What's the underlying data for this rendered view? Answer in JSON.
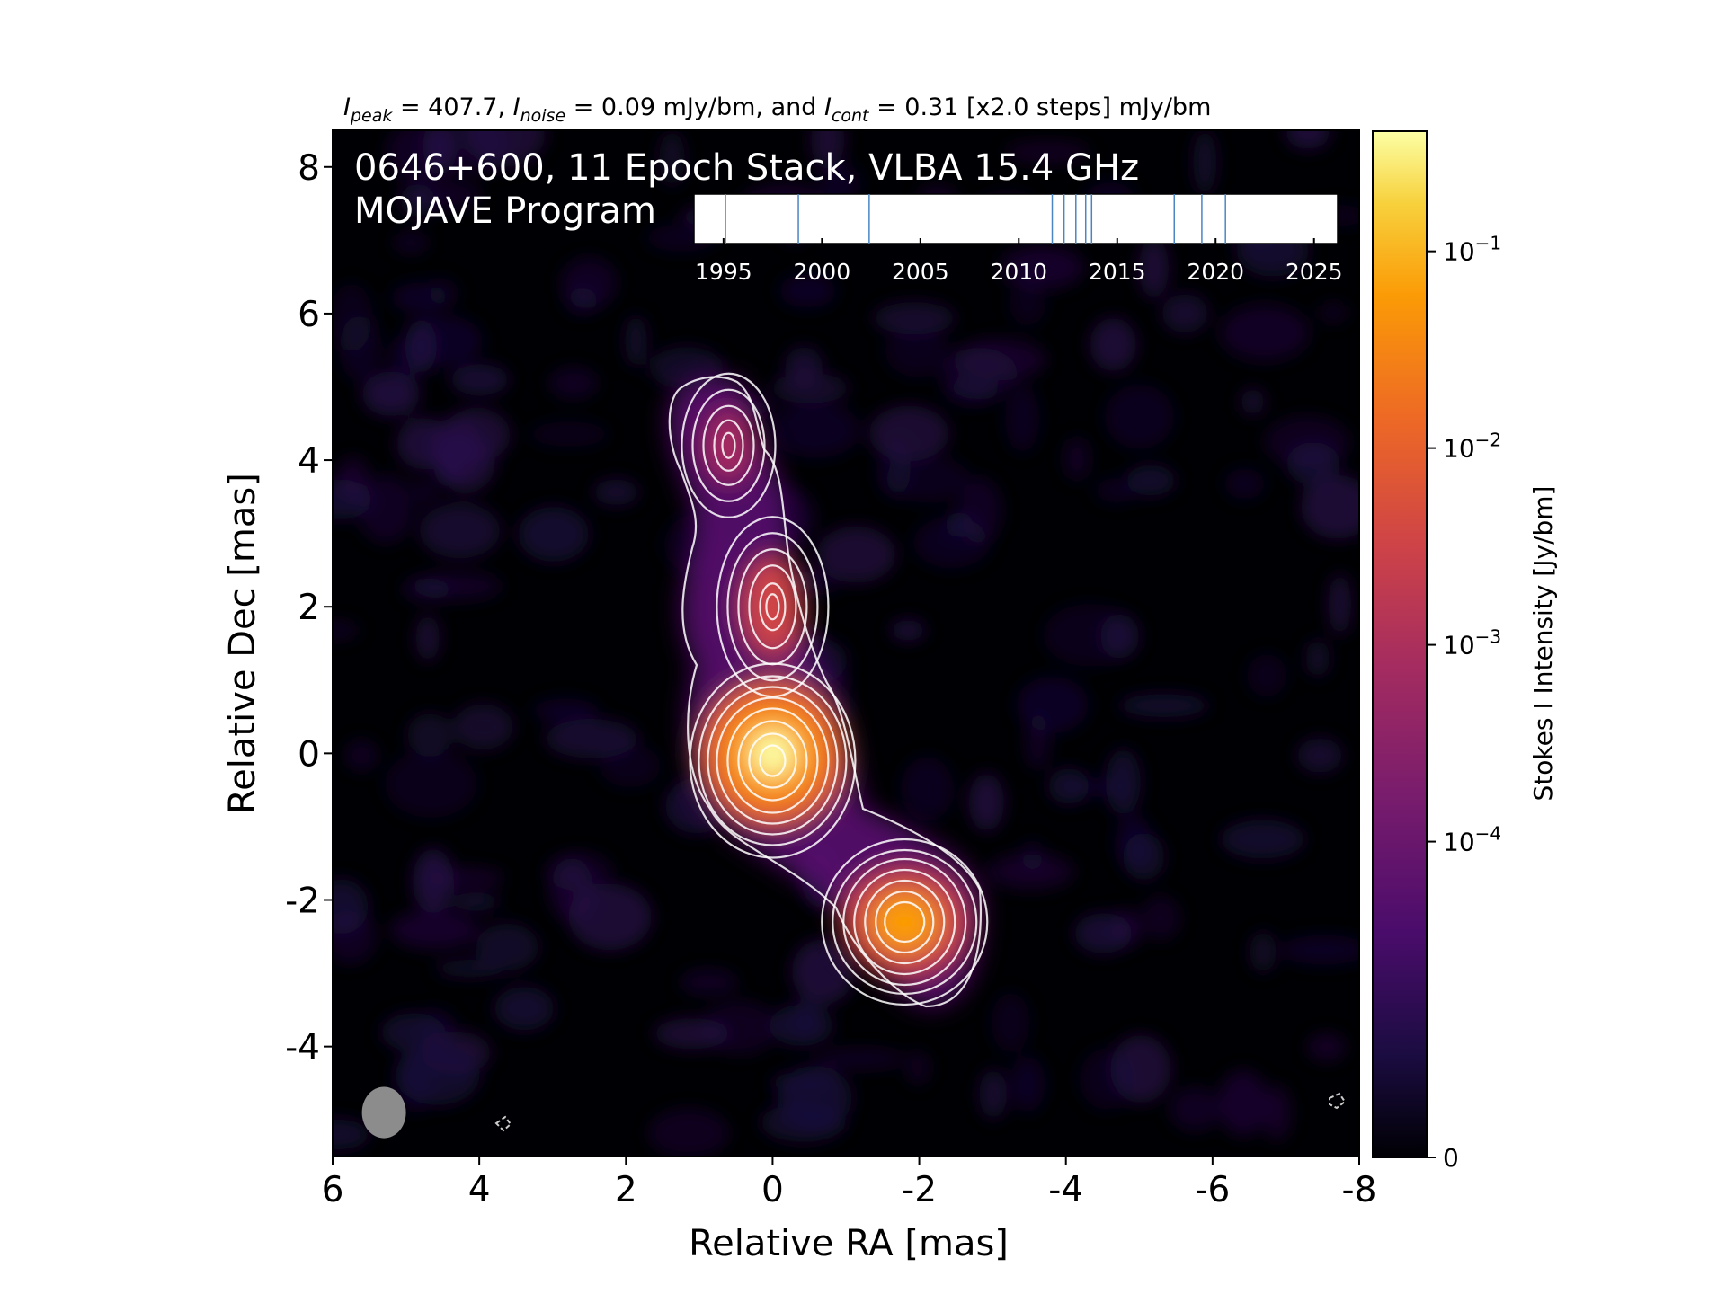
{
  "chart_data": {
    "type": "heatmap",
    "title_parts": {
      "peak_sym": "I",
      "peak_sub": "peak",
      "peak_val": " = 407.7, ",
      "noise_sym": "I",
      "noise_sub": "noise",
      "noise_val": " = 0.09 mJy/bm, and ",
      "cont_sym": "I",
      "cont_sub": "cont",
      "cont_val": " = 0.31 [x2.0 steps] mJy/bm"
    },
    "overlay_line1": "0646+600, 11 Epoch Stack, VLBA 15.4 GHz",
    "overlay_line2": "MOJAVE Program",
    "xlabel": "Relative RA [mas]",
    "ylabel": "Relative Dec [mas]",
    "xlim": [
      6,
      -8
    ],
    "ylim": [
      -5.5,
      8.5
    ],
    "xticks": [
      6,
      4,
      2,
      0,
      -2,
      -4,
      -6,
      -8
    ],
    "xtick_labels": [
      "6",
      "4",
      "2",
      "0",
      "-2",
      "-4",
      "-6",
      "-8"
    ],
    "yticks": [
      8,
      6,
      4,
      2,
      0,
      -2,
      -4
    ],
    "ytick_labels": [
      "8",
      "6",
      "4",
      "2",
      "0",
      "-2",
      "-4"
    ],
    "colorbar": {
      "label": "Stokes I Intensity [Jy/bm]",
      "scale": "log",
      "ticks": [
        {
          "value": 0.1,
          "base": "10",
          "exp": "−1"
        },
        {
          "value": 0.01,
          "base": "10",
          "exp": "−2"
        },
        {
          "value": 0.001,
          "base": "10",
          "exp": "−3"
        },
        {
          "value": 0.0001,
          "base": "10",
          "exp": "−4"
        },
        {
          "value": 0,
          "base": "0",
          "exp": ""
        }
      ],
      "vmax": 0.4077,
      "colormap": "inferno"
    },
    "components": [
      {
        "ra": 0.0,
        "dec": 0.0,
        "peak_jy": 0.4077
      },
      {
        "ra": 0.0,
        "dec": 2.0,
        "peak_jy": 0.03
      },
      {
        "ra": 0.6,
        "dec": 4.2,
        "peak_jy": 0.012
      },
      {
        "ra": -1.8,
        "dec": -2.3,
        "peak_jy": 0.09
      }
    ],
    "beam": {
      "ra": 5.3,
      "dec": -4.9,
      "bmaj_mas": 0.7,
      "bmin_mas": 0.6,
      "pa_deg": 0
    },
    "epoch_timeline": {
      "xlim": [
        1993.5,
        2026.2
      ],
      "ticks": [
        1995,
        2000,
        2005,
        2010,
        2015,
        2020,
        2025
      ],
      "tick_labels": [
        "1995",
        "2000",
        "2005",
        "2010",
        "2015",
        "2020",
        "2025"
      ],
      "epochs": [
        1995.1,
        1998.8,
        2002.4,
        2011.7,
        2012.3,
        2012.9,
        2013.4,
        2013.7,
        2017.9,
        2019.3,
        2020.5
      ]
    },
    "contour_color": "#ffffff",
    "background_color": "#000004"
  }
}
